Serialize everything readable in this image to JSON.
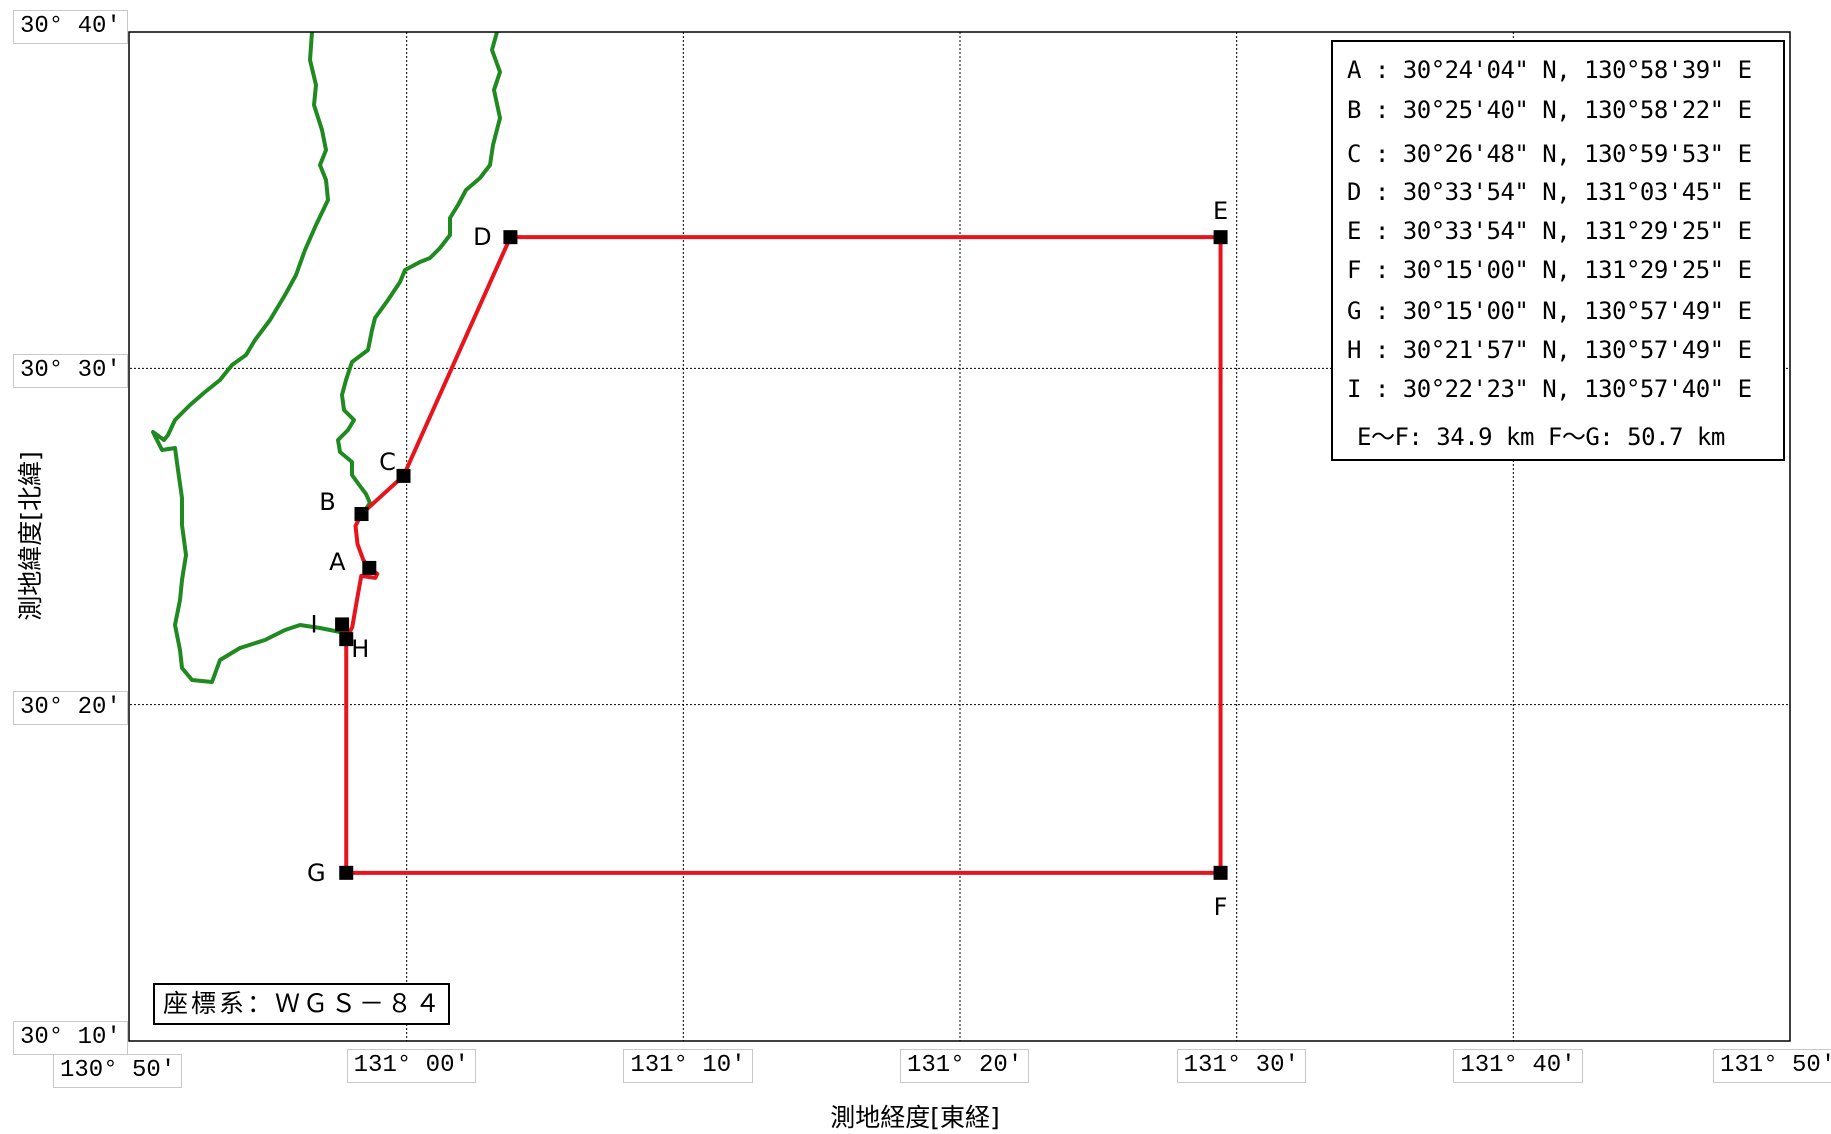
{
  "axes": {
    "ylabel": "測地緯度[北緯]",
    "xlabel": "測地経度[東経]",
    "lat_ticks": [
      "30° 40'",
      "30° 30'",
      "30° 20'",
      "30° 10'"
    ],
    "lon_ticks": [
      "130° 50'",
      "131° 00'",
      "131° 10'",
      "131° 20'",
      "131° 30'",
      "131° 40'",
      "131° 50'"
    ]
  },
  "legend": {
    "rows": [
      "A : 30°24'04\" N, 130°58'39\" E",
      "B : 30°25'40\" N, 130°58'22\" E",
      "C : 30°26'48\" N, 130°59'53\" E",
      "D : 30°33'54\" N, 131°03'45\" E",
      "E : 30°33'54\" N, 131°29'25\" E",
      "F : 30°15'00\" N, 131°29'25\" E",
      "G : 30°15'00\" N, 130°57'49\" E",
      "H : 30°21'57\" N, 130°57'49\" E",
      "I : 30°22'23\" N, 130°57'40\" E"
    ],
    "distances": "E〜F: 34.9 km  F〜G: 50.7 km"
  },
  "crs": "座標系：ＷＧＳ－８４",
  "points": [
    {
      "name": "A",
      "lat": 30.4011,
      "lon": 130.9775
    },
    {
      "name": "B",
      "lat": 30.4278,
      "lon": 130.9728
    },
    {
      "name": "C",
      "lat": 30.4467,
      "lon": 130.9981
    },
    {
      "name": "D",
      "lat": 30.565,
      "lon": 131.0625
    },
    {
      "name": "E",
      "lat": 30.565,
      "lon": 131.4903
    },
    {
      "name": "F",
      "lat": 30.25,
      "lon": 131.4903
    },
    {
      "name": "G",
      "lat": 30.25,
      "lon": 130.9636
    },
    {
      "name": "H",
      "lat": 30.3658,
      "lon": 130.9636
    },
    {
      "name": "I",
      "lat": 30.3731,
      "lon": 130.9611
    }
  ],
  "colors": {
    "boundary": "#e8141c",
    "coastline": "#1f8a1f",
    "grid": "#000000",
    "marker": "#000000"
  }
}
